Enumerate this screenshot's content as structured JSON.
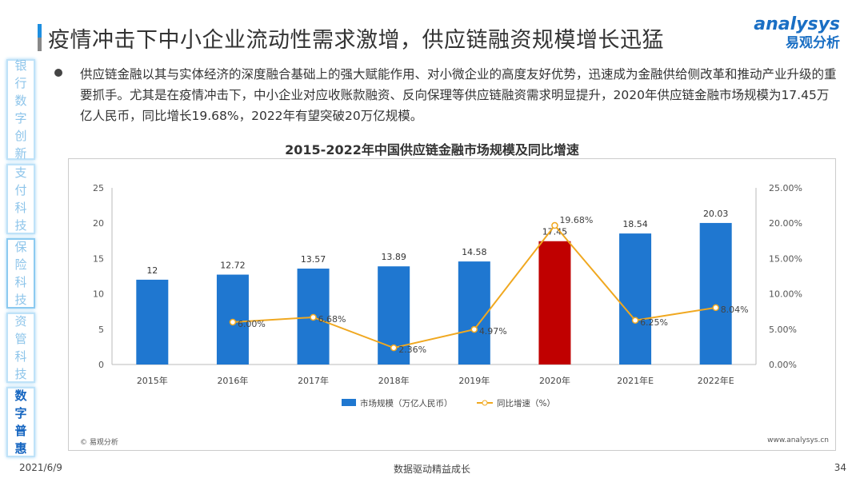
{
  "header": {
    "title": "疫情冲击下中小企业流动性需求激增，供应链融资规模增长迅猛",
    "logo_en": "nalysys",
    "logo_cn": "易观分析"
  },
  "sidebar": {
    "items": [
      {
        "label": "银行数字创新"
      },
      {
        "label": "支付科技"
      },
      {
        "label": "保险科技"
      },
      {
        "label": "资管科技"
      },
      {
        "label": "数字普惠"
      }
    ],
    "active": 4
  },
  "body": {
    "paragraph": "供应链金融以其与实体经济的深度融合基础上的强大赋能作用、对小微企业的高度友好优势，迅速成为金融供给侧改革和推动产业升级的重要抓手。尤其是在疫情冲击下，中小企业对应收账款融资、反向保理等供应链融资需求明显提升，2020年供应链金融市场规模为17.45万亿人民币，同比增长19.68%，2022年有望突破20万亿规模。"
  },
  "chart_data": {
    "type": "bar+line",
    "title": "2015-2022年中国供应链金融市场规模及同比增速",
    "categories": [
      "2015年",
      "2016年",
      "2017年",
      "2018年",
      "2019年",
      "2020年",
      "2021年E",
      "2022年E"
    ],
    "series": [
      {
        "name": "市场规模（万亿人民币）",
        "type": "bar",
        "axis": "left",
        "values": [
          12,
          12.72,
          13.57,
          13.89,
          14.58,
          17.45,
          18.54,
          20.03
        ],
        "labels": [
          "12",
          "12.72",
          "13.57",
          "13.89",
          "14.58",
          "17.45",
          "18.54",
          "20.03"
        ],
        "color": "#1f77d0",
        "highlight_color": "#c00000",
        "highlight_index": 5
      },
      {
        "name": "同比增速（%）",
        "type": "line",
        "axis": "right",
        "values": [
          null,
          6.0,
          6.68,
          2.36,
          4.97,
          19.68,
          6.25,
          8.04
        ],
        "labels": [
          "",
          "6.00%",
          "6.68%",
          "2.36%",
          "4.97%",
          "19.68%",
          "6.25%",
          "8.04%"
        ],
        "color": "#f0a820"
      }
    ],
    "ylim_left": [
      0,
      25
    ],
    "yticks_left": [
      "0",
      "5",
      "10",
      "15",
      "20",
      "25"
    ],
    "ylim_right": [
      0,
      25
    ],
    "yticks_right": [
      "0.00%",
      "5.00%",
      "10.00%",
      "15.00%",
      "20.00%",
      "25.00%"
    ],
    "legend": "bottom",
    "grid": false
  },
  "source": "© 易观分析",
  "url": "www.analysys.cn",
  "footer": {
    "date": "2021/6/9",
    "slogan": "数据驱动精益成长",
    "page": "34"
  }
}
